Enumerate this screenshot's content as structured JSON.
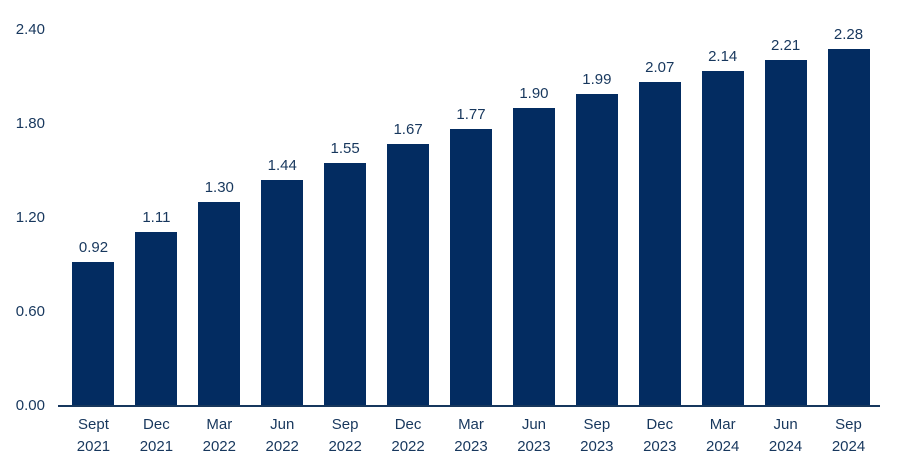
{
  "colors": {
    "bar": "#032c61",
    "text": "#17375d",
    "axis": "#17375d",
    "background": "#ffffff"
  },
  "chart_data": {
    "type": "bar",
    "title": "",
    "xlabel": "",
    "ylabel": "",
    "categories": [
      "Sept 2021",
      "Dec 2021",
      "Mar 2022",
      "Jun 2022",
      "Sep 2022",
      "Dec 2022",
      "Mar 2023",
      "Jun 2023",
      "Sep 2023",
      "Dec 2023",
      "Mar 2024",
      "Jun 2024",
      "Sep 2024"
    ],
    "values": [
      0.92,
      1.11,
      1.3,
      1.44,
      1.55,
      1.67,
      1.77,
      1.9,
      1.99,
      2.07,
      2.14,
      2.21,
      2.28
    ],
    "value_labels": [
      "0.92",
      "1.11",
      "1.30",
      "1.44",
      "1.55",
      "1.67",
      "1.77",
      "1.90",
      "1.99",
      "2.07",
      "2.14",
      "2.21",
      "2.28"
    ],
    "ylim": [
      0,
      2.4
    ],
    "yticks": [
      0,
      0.6,
      1.2,
      1.8,
      2.4
    ],
    "ytick_labels": [
      "0.00",
      "0.60",
      "1.20",
      "1.80",
      "2.40"
    ],
    "grid": false,
    "legend": false
  }
}
